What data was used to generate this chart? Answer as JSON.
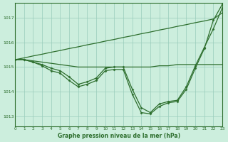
{
  "background_color": "#cceedd",
  "grid_color": "#99ccbb",
  "line_color": "#2d6e2d",
  "xlabel": "Graphe pression niveau de la mer (hPa)",
  "xlim": [
    0,
    23
  ],
  "ylim": [
    1012.6,
    1017.6
  ],
  "yticks": [
    1013,
    1014,
    1015,
    1016,
    1017
  ],
  "xticks": [
    0,
    1,
    2,
    3,
    4,
    5,
    6,
    7,
    8,
    9,
    10,
    11,
    12,
    13,
    14,
    15,
    16,
    17,
    18,
    19,
    20,
    21,
    22,
    23
  ],
  "series": [
    {
      "x": [
        0,
        1,
        2,
        3,
        4,
        5,
        6,
        7,
        8,
        9,
        10,
        11,
        12,
        13,
        14,
        15,
        16,
        17,
        18,
        19,
        20,
        21,
        22,
        23
      ],
      "y": [
        1015.3,
        1015.3,
        1015.25,
        1015.2,
        1015.15,
        1015.1,
        1015.05,
        1015.0,
        1015.0,
        1015.0,
        1015.0,
        1015.0,
        1015.0,
        1015.0,
        1015.0,
        1015.0,
        1015.05,
        1015.05,
        1015.1,
        1015.1,
        1015.1,
        1015.1,
        1015.1,
        1015.1
      ],
      "marker": false,
      "lw": 0.9
    },
    {
      "x": [
        0,
        1,
        2,
        3,
        4,
        5,
        6,
        7,
        8,
        9,
        10,
        11,
        12,
        13,
        14,
        15,
        16,
        17,
        18,
        19,
        20,
        21,
        22,
        23
      ],
      "y": [
        1015.3,
        1015.37,
        1015.45,
        1015.52,
        1015.6,
        1015.67,
        1015.75,
        1015.82,
        1015.9,
        1015.97,
        1016.05,
        1016.12,
        1016.2,
        1016.27,
        1016.35,
        1016.42,
        1016.5,
        1016.57,
        1016.65,
        1016.72,
        1016.8,
        1016.87,
        1016.95,
        1017.2
      ],
      "marker": false,
      "lw": 0.9
    },
    {
      "x": [
        0,
        1,
        2,
        3,
        4,
        5,
        6,
        7,
        8,
        9,
        10,
        11,
        12,
        13,
        14,
        15,
        16,
        17,
        18,
        19,
        20,
        21,
        22,
        23
      ],
      "y": [
        1015.3,
        1015.3,
        1015.2,
        1015.1,
        1014.95,
        1014.85,
        1014.6,
        1014.3,
        1014.4,
        1014.55,
        1014.95,
        1015.0,
        1015.0,
        1014.1,
        1013.35,
        1013.15,
        1013.5,
        1013.6,
        1013.65,
        1014.2,
        1015.05,
        1015.8,
        1016.55,
        1017.4
      ],
      "marker": true,
      "lw": 0.9
    },
    {
      "x": [
        0,
        1,
        2,
        3,
        4,
        5,
        6,
        7,
        8,
        9,
        10,
        11,
        12,
        13,
        14,
        15,
        16,
        17,
        18,
        19,
        20,
        21,
        22,
        23
      ],
      "y": [
        1015.3,
        1015.3,
        1015.2,
        1015.05,
        1014.85,
        1014.75,
        1014.45,
        1014.2,
        1014.3,
        1014.45,
        1014.85,
        1014.9,
        1014.9,
        1013.9,
        1013.15,
        1013.1,
        1013.4,
        1013.55,
        1013.6,
        1014.1,
        1014.95,
        1015.75,
        1016.9,
        1017.55
      ],
      "marker": true,
      "lw": 0.9
    }
  ]
}
